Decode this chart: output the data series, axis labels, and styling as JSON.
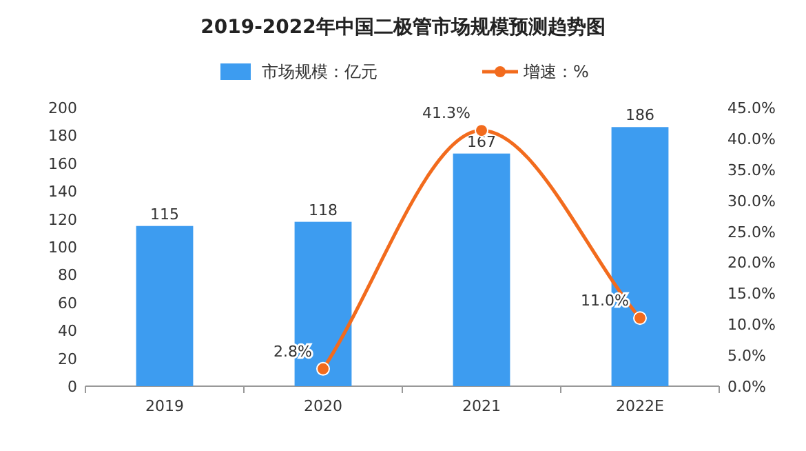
{
  "chart_data": {
    "type": "bar",
    "title": "2019-2022年中国二极管市场规模预测趋势图",
    "categories": [
      "2019",
      "2020",
      "2021",
      "2022E"
    ],
    "series": [
      {
        "name": "市场规模：亿元",
        "color": "#3d9cf0",
        "values": [
          115,
          118,
          167,
          186
        ],
        "value_labels": [
          "115",
          "118",
          "167",
          "186"
        ]
      },
      {
        "name": "增速：%",
        "type": "line",
        "axis": "y2",
        "color": "#f26b1d",
        "values": [
          null,
          2.8,
          41.3,
          11.0
        ],
        "value_labels": [
          null,
          "2.8%",
          "41.3%",
          "11.0%"
        ],
        "marker": "circle"
      }
    ],
    "ylim": [
      0,
      200
    ],
    "yticks": [
      0,
      20,
      40,
      60,
      80,
      100,
      120,
      140,
      160,
      180,
      200
    ],
    "y2lim": [
      0,
      45
    ],
    "y2ticks": [
      {
        "value": 0,
        "label": "0.0%"
      },
      {
        "value": 5,
        "label": "5.0%"
      },
      {
        "value": 10,
        "label": "10.0%"
      },
      {
        "value": 15,
        "label": "15.0%"
      },
      {
        "value": 20,
        "label": "20.0%"
      },
      {
        "value": 25,
        "label": "25.0%"
      },
      {
        "value": 30,
        "label": "30.0%"
      },
      {
        "value": 35,
        "label": "35.0%"
      },
      {
        "value": 40,
        "label": "40.0%"
      },
      {
        "value": 45,
        "label": "45.0%"
      }
    ],
    "legend": "top"
  }
}
